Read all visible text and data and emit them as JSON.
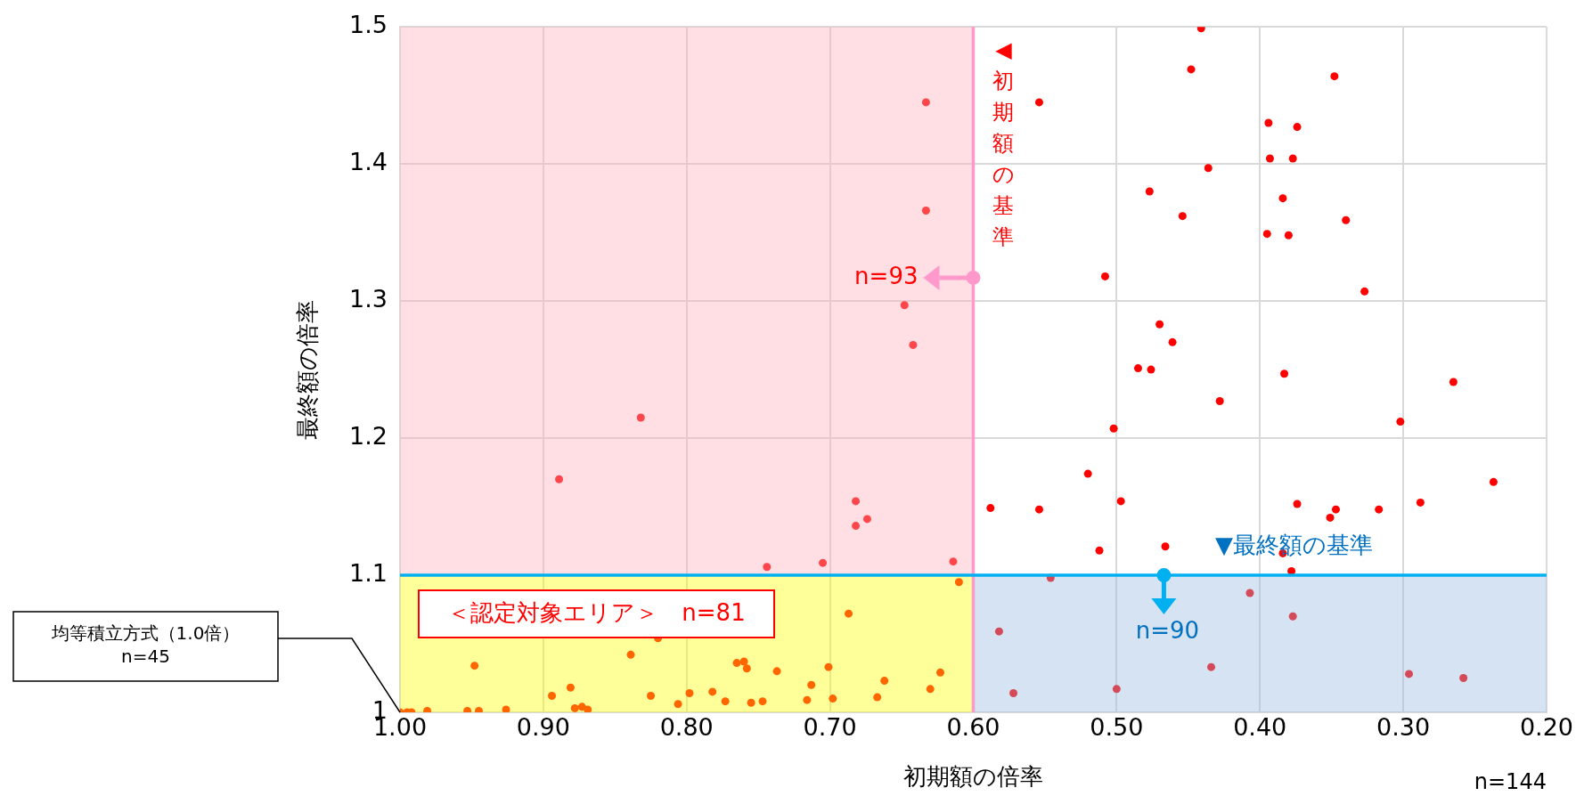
{
  "chart_data": {
    "type": "scatter",
    "xlabel": "初期額の倍率",
    "ylabel": "最終額の倍率",
    "xlim": [
      1.0,
      0.2
    ],
    "ylim": [
      1.0,
      1.5
    ],
    "xticks": [
      {
        "value": 1.0,
        "label": "1.00"
      },
      {
        "value": 0.9,
        "label": "0.90"
      },
      {
        "value": 0.8,
        "label": "0.80"
      },
      {
        "value": 0.7,
        "label": "0.70"
      },
      {
        "value": 0.6,
        "label": "0.60"
      },
      {
        "value": 0.5,
        "label": "0.50"
      },
      {
        "value": 0.4,
        "label": "0.40"
      },
      {
        "value": 0.3,
        "label": "0.30"
      },
      {
        "value": 0.2,
        "label": "0.20"
      }
    ],
    "yticks": [
      1,
      1.1,
      1.2,
      1.3,
      1.4,
      1.5
    ],
    "grid": true,
    "legend": false,
    "marker": "circle",
    "series": [
      {
        "color": "#ff0000",
        "x": [
          0.633,
          0.554,
          0.633,
          0.477,
          0.508,
          0.648,
          0.642,
          0.47,
          0.485,
          0.476,
          0.441,
          0.448,
          0.348,
          0.394,
          0.374,
          0.393,
          0.377,
          0.436,
          0.384,
          0.454,
          0.34,
          0.395,
          0.38,
          0.327,
          0.461,
          0.383,
          0.832,
          0.889,
          0.744,
          0.948,
          0.839,
          0.765,
          0.76,
          0.758,
          0.737,
          0.82,
          0.894,
          0.881,
          0.825,
          0.806,
          0.798,
          0.782,
          0.773,
          0.755,
          0.747,
          0.878,
          0.873,
          0.869,
          0.926,
          0.945,
          0.953,
          0.981,
          1.0,
          0.995,
          0.992,
          0.682,
          0.674,
          0.682,
          0.705,
          0.614,
          0.61,
          0.687,
          0.701,
          0.713,
          0.716,
          0.698,
          0.662,
          0.667,
          0.623,
          0.63,
          0.502,
          0.52,
          0.588,
          0.554,
          0.497,
          0.512,
          0.466,
          0.546,
          0.582,
          0.572,
          0.5,
          0.428,
          0.265,
          0.302,
          0.237,
          0.288,
          0.374,
          0.347,
          0.351,
          0.317,
          0.384,
          0.378,
          0.407,
          0.377,
          0.434,
          0.296,
          0.258
        ],
        "values": [
          1.445,
          1.445,
          1.366,
          1.38,
          1.318,
          1.297,
          1.268,
          1.283,
          1.251,
          1.25,
          1.499,
          1.469,
          1.464,
          1.43,
          1.427,
          1.404,
          1.404,
          1.397,
          1.375,
          1.362,
          1.359,
          1.349,
          1.348,
          1.307,
          1.27,
          1.247,
          1.215,
          1.17,
          1.106,
          1.034,
          1.042,
          1.036,
          1.037,
          1.032,
          1.03,
          1.054,
          1.012,
          1.018,
          1.012,
          1.006,
          1.014,
          1.015,
          1.008,
          1.007,
          1.008,
          1.003,
          1.004,
          1.002,
          1.002,
          1.001,
          1.001,
          1.001,
          1.0,
          1.0,
          1.0,
          1.154,
          1.141,
          1.136,
          1.109,
          1.11,
          1.095,
          1.072,
          1.033,
          1.02,
          1.009,
          1.01,
          1.023,
          1.011,
          1.029,
          1.017,
          1.207,
          1.174,
          1.149,
          1.148,
          1.154,
          1.118,
          1.121,
          1.098,
          1.059,
          1.014,
          1.017,
          1.227,
          1.241,
          1.212,
          1.168,
          1.153,
          1.152,
          1.148,
          1.142,
          1.148,
          1.116,
          1.103,
          1.087,
          1.07,
          1.033,
          1.028,
          1.025
        ]
      }
    ],
    "bands": [
      {
        "axis": "x",
        "from": 1.0,
        "to": 0.6,
        "color": "#ffafb9"
      },
      {
        "axis": "y",
        "from": 1.0,
        "to": 1.1,
        "color": "#96b9de"
      },
      {
        "axis": "y",
        "from": 1.0,
        "to": 1.1,
        "color": "#ffff00",
        "label": "＜認定対象エリア＞　n=81"
      }
    ],
    "ref_lines": [
      {
        "axis": "x",
        "value": 0.6,
        "label": "◀初期額の基準",
        "color": "#ff99cc"
      },
      {
        "axis": "y",
        "value": 1.1,
        "label": "▼最終額の基準",
        "color": "#00b0f0"
      }
    ],
    "annotations": [
      {
        "text": "n=93",
        "x": 0.6,
        "y": 1.317
      },
      {
        "text": "n=90",
        "x": 0.467,
        "y": 1.1
      },
      "均等積立方式（1.0倍）\nn=45",
      "n=144"
    ]
  }
}
